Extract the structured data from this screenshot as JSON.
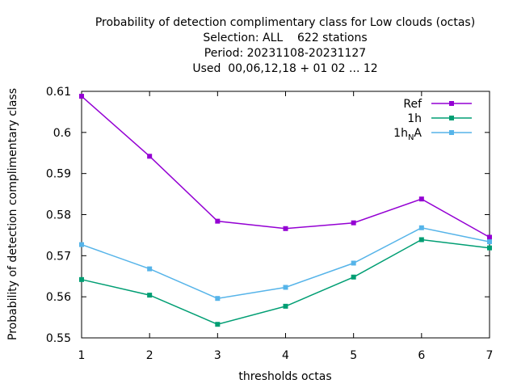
{
  "chart_data": {
    "type": "line",
    "title_lines": [
      "Probability of detection complimentary class  for Low clouds (octas)",
      "Selection: ALL    622 stations",
      "Period: 20231108-20231127",
      "Used  00,06,12,18 + 01 02 ... 12"
    ],
    "xlabel": "thresholds octas",
    "ylabel": "Probability of detection complimentary class",
    "x": [
      1,
      2,
      3,
      4,
      5,
      6,
      7
    ],
    "xlim": [
      1,
      7
    ],
    "ylim": [
      0.55,
      0.61
    ],
    "x_ticks": [
      "1",
      "2",
      "3",
      "4",
      "5",
      "6",
      "7"
    ],
    "y_ticks": [
      0.55,
      0.56,
      0.57,
      0.58,
      0.59,
      0.6,
      0.61
    ],
    "y_tick_labels": [
      "0.55",
      "0.56",
      "0.57",
      "0.58",
      "0.59",
      "0.6",
      "0.61"
    ],
    "grid": false,
    "legend_position": "top-right",
    "series": [
      {
        "name": "Ref",
        "name_main": "Ref",
        "color": "#9400d3",
        "marker": "point",
        "values": [
          0.6088,
          0.5942,
          0.5784,
          0.5766,
          0.578,
          0.5838,
          0.5745
        ]
      },
      {
        "name": "1h",
        "name_main": "1h",
        "color": "#009e73",
        "marker": "point",
        "values": [
          0.5642,
          0.5604,
          0.5533,
          0.5577,
          0.5648,
          0.5739,
          0.5719
        ]
      },
      {
        "name": "1h_NA",
        "name_main": "1h",
        "name_sub": "N",
        "name_tail": "A",
        "color": "#56b4e9",
        "marker": "point",
        "values": [
          0.5727,
          0.5668,
          0.5596,
          0.5623,
          0.5682,
          0.5768,
          0.5734
        ]
      }
    ]
  }
}
